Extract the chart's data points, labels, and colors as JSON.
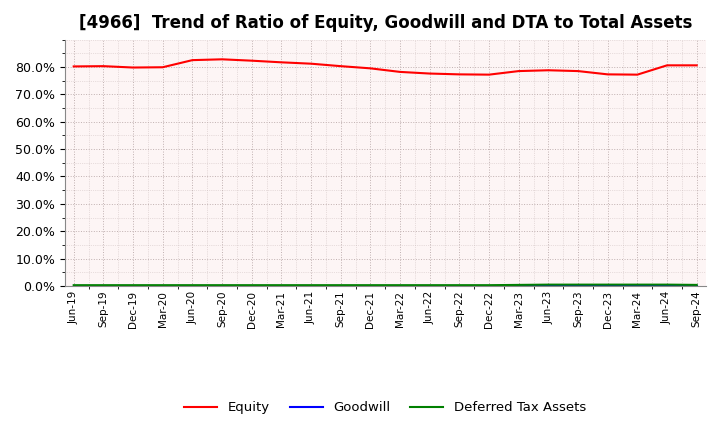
{
  "title": "[4966]  Trend of Ratio of Equity, Goodwill and DTA to Total Assets",
  "x_labels": [
    "Jun-19",
    "Sep-19",
    "Dec-19",
    "Mar-20",
    "Jun-20",
    "Sep-20",
    "Dec-20",
    "Mar-21",
    "Jun-21",
    "Sep-21",
    "Dec-21",
    "Mar-22",
    "Jun-22",
    "Sep-22",
    "Dec-22",
    "Mar-23",
    "Jun-23",
    "Sep-23",
    "Dec-23",
    "Mar-24",
    "Jun-24",
    "Sep-24"
  ],
  "equity": [
    80.2,
    80.3,
    79.8,
    79.9,
    82.5,
    82.8,
    82.3,
    81.7,
    81.2,
    80.3,
    79.5,
    78.2,
    77.6,
    77.3,
    77.2,
    78.5,
    78.8,
    78.5,
    77.3,
    77.2,
    80.6,
    80.6
  ],
  "goodwill": [
    0.0,
    0.0,
    0.0,
    0.0,
    0.0,
    0.0,
    0.0,
    0.0,
    0.0,
    0.0,
    0.0,
    0.0,
    0.0,
    0.0,
    0.0,
    0.0,
    0.0,
    0.0,
    0.0,
    0.0,
    0.0,
    0.0
  ],
  "dta": [
    0.3,
    0.3,
    0.3,
    0.3,
    0.3,
    0.3,
    0.3,
    0.3,
    0.3,
    0.3,
    0.3,
    0.3,
    0.3,
    0.3,
    0.3,
    0.4,
    0.5,
    0.5,
    0.5,
    0.5,
    0.5,
    0.4
  ],
  "equity_color": "#ff0000",
  "goodwill_color": "#0000ff",
  "dta_color": "#008000",
  "bg_color": "#ffffff",
  "plot_bg_color": "#fdf5f5",
  "grid_color": "#c0b0b0",
  "ylim": [
    0,
    90
  ],
  "yticks": [
    0,
    10,
    20,
    30,
    40,
    50,
    60,
    70,
    80
  ],
  "title_fontsize": 12,
  "legend_labels": [
    "Equity",
    "Goodwill",
    "Deferred Tax Assets"
  ]
}
